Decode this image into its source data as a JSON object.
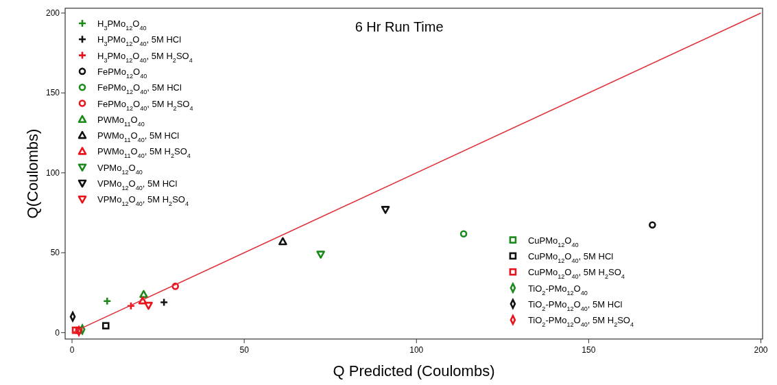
{
  "chart_data": {
    "type": "scatter",
    "title": "6 Hr Run Time",
    "xlabel": "Q Predicted (Coulombs)",
    "ylabel": "Q(Coulombs)",
    "xlim": [
      -2,
      200.5
    ],
    "ylim": [
      -4,
      203
    ],
    "xticks": [
      0,
      50,
      100,
      150,
      200
    ],
    "yticks": [
      0,
      50,
      100,
      150,
      200
    ],
    "grid": false,
    "legend": "top left",
    "series": [
      {
        "name": "H$_{3}$PMo$_{12}$O$_{40}$",
        "color": "#1a8a1a",
        "marker": "cross",
        "x": [
          10.2
        ],
        "values": [
          19.7
        ]
      },
      {
        "name": "H$_{3}$PMo$_{12}$O$_{40}$, 5M HCl",
        "color": "#111111",
        "marker": "cross",
        "x": [
          26.7
        ],
        "values": [
          19
        ]
      },
      {
        "name": "H$_{3}$PMo$_{12}$O$_{40}$, 5M H$_{2}$SO$_{4}$",
        "color": "#e8141c",
        "marker": "cross",
        "x": [
          17.1
        ],
        "values": [
          16.7
        ]
      },
      {
        "name": "FePMo$_{12}$O$_{40}$",
        "color": "#111111",
        "marker": "circle",
        "x": [
          168.5
        ],
        "values": [
          67.4
        ]
      },
      {
        "name": "FePMo$_{12}$O$_{40}$, 5M HCl",
        "color": "#1a8a1a",
        "marker": "circle",
        "x": [
          113.7
        ],
        "values": [
          61.8
        ]
      },
      {
        "name": "FePMo$_{12}$O$_{40}$, 5M H$_{2}$SO$_{4}$",
        "color": "#e8141c",
        "marker": "circle",
        "x": [
          30
        ],
        "values": [
          29
        ]
      },
      {
        "name": "PWMo$_{11}$O$_{40}$",
        "color": "#1a8a1a",
        "marker": "triangle",
        "x": [
          20.8
        ],
        "values": [
          24
        ]
      },
      {
        "name": "PWMo$_{11}$O$_{40}$, 5M HCl",
        "color": "#111111",
        "marker": "triangle",
        "x": [
          61.2
        ],
        "values": [
          57
        ]
      },
      {
        "name": "PWMo$_{11}$O$_{40}$, 5M H$_{2}$SO$_{4}$",
        "color": "#e8141c",
        "marker": "triangle",
        "x": [
          20.5
        ],
        "values": [
          20
        ]
      },
      {
        "name": "VPMo$_{12}$O$_{40}$",
        "color": "#1a8a1a",
        "marker": "triangle-down",
        "x": [
          72.2
        ],
        "values": [
          49
        ]
      },
      {
        "name": "VPMo$_{12}$O$_{40}$, 5M HCl",
        "color": "#111111",
        "marker": "triangle-down",
        "x": [
          91
        ],
        "values": [
          77
        ]
      },
      {
        "name": "VPMo$_{12}$O$_{40}$, 5M H$_{2}$SO$_{4}$",
        "color": "#e8141c",
        "marker": "triangle-down",
        "x": [
          22.2
        ],
        "values": [
          17
        ]
      },
      {
        "name": "CuPMo$_{12}$O$_{40}$",
        "color": "#1a8a1a",
        "marker": "square",
        "x": [
          null
        ],
        "values": [
          null
        ]
      },
      {
        "name": "CuPMo$_{12}$O$_{40}$, 5M HCl",
        "color": "#111111",
        "marker": "square",
        "x": [
          9.8
        ],
        "values": [
          4.3
        ]
      },
      {
        "name": "CuPMo$_{12}$O$_{40}$, 5M H$_{2}$SO$_{4}$",
        "color": "#e8141c",
        "marker": "square",
        "x": [
          1,
          2
        ],
        "values": [
          1.5,
          1.5
        ]
      },
      {
        "name": "TiO$_{2}$-PMo$_{12}$O$_{40}$",
        "color": "#1a8a1a",
        "marker": "diamond",
        "x": [
          3
        ],
        "values": [
          2
        ]
      },
      {
        "name": "TiO$_{2}$-PMo$_{12}$O$_{40}$, 5M HCl",
        "color": "#111111",
        "marker": "diamond",
        "x": [
          0.2
        ],
        "values": [
          10
        ]
      },
      {
        "name": "TiO$_{2}$-PMo$_{12}$O$_{40}$, 5M H$_{2}$SO$_{4}$",
        "color": "#e8141c",
        "marker": "diamond",
        "x": [
          2
        ],
        "values": [
          1
        ]
      },
      {
        "type": "line",
        "color": "#e0303a",
        "x": [
          0,
          200
        ],
        "values": [
          0,
          200
        ]
      }
    ]
  }
}
